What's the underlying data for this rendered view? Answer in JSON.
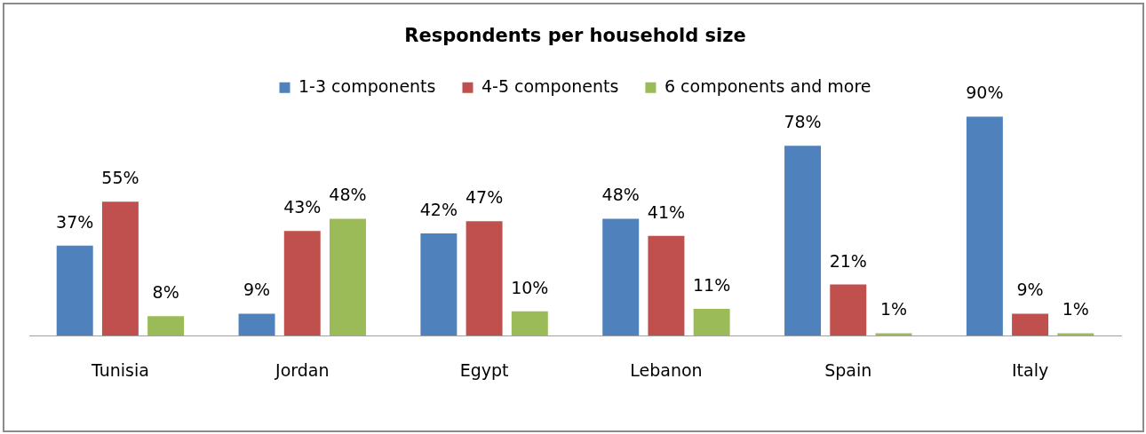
{
  "chart_data": {
    "type": "bar",
    "title": "Respondents per household size",
    "categories": [
      "Tunisia",
      "Jordan",
      "Egypt",
      "Lebanon",
      "Spain",
      "Italy"
    ],
    "series": [
      {
        "name": "1-3 components",
        "color": "#4f81bd",
        "values": [
          37,
          9,
          42,
          48,
          78,
          90
        ],
        "value_labels": [
          "37%",
          "9%",
          "42%",
          "48%",
          "78%",
          "90%"
        ]
      },
      {
        "name": "4-5 components",
        "color": "#c0504d",
        "values": [
          55,
          43,
          47,
          41,
          21,
          9
        ],
        "value_labels": [
          "55%",
          "43%",
          "47%",
          "41%",
          "21%",
          "9%"
        ]
      },
      {
        "name": "6 components and more",
        "color": "#9bbb59",
        "values": [
          8,
          48,
          10,
          11,
          1,
          1
        ],
        "value_labels": [
          "8%",
          "48%",
          "10%",
          "11%",
          "1%",
          "1%"
        ]
      }
    ],
    "legend": "top"
  }
}
